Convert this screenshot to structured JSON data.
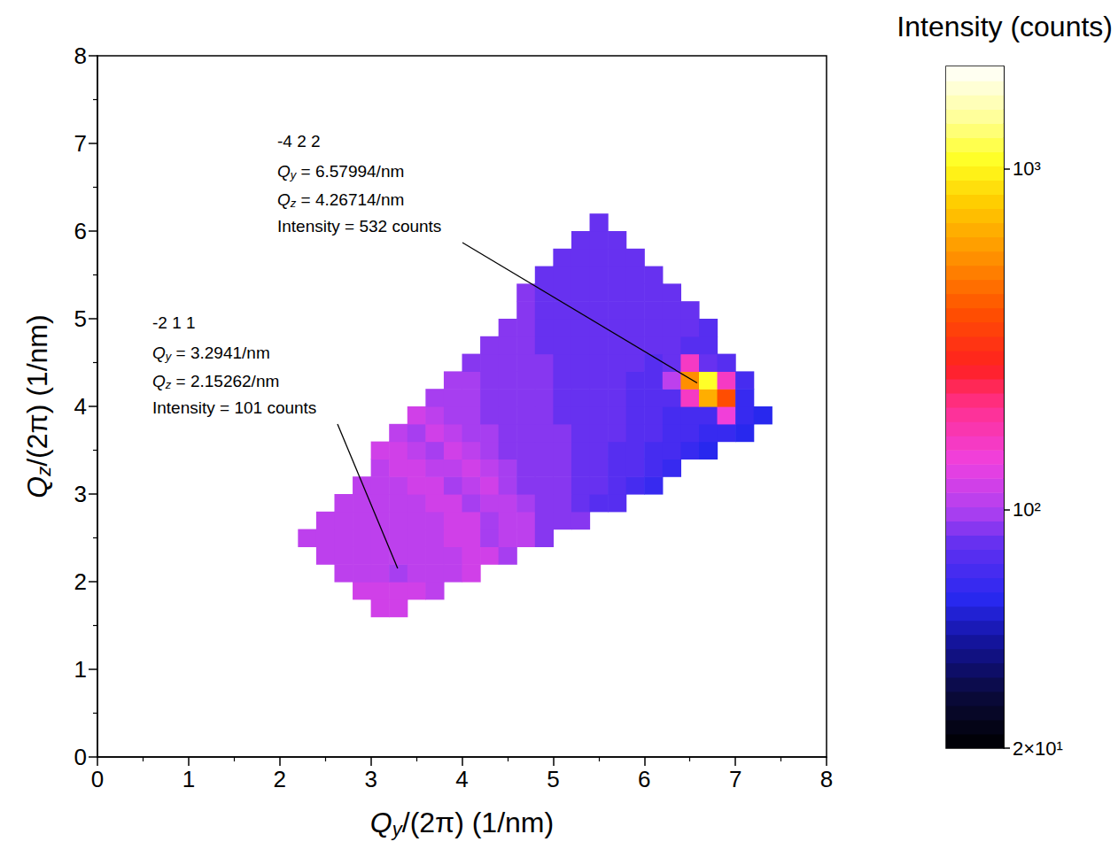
{
  "chart_data": {
    "type": "heatmap",
    "x_label": "Qy/(2π) (1/nm)",
    "y_label": "Qz/(2π) (1/nm)",
    "xlim": [
      0,
      8
    ],
    "ylim": [
      0,
      8
    ],
    "xticks": [
      0,
      1,
      2,
      3,
      4,
      5,
      6,
      7,
      8
    ],
    "yticks": [
      0,
      1,
      2,
      3,
      4,
      5,
      6,
      7,
      8
    ],
    "grid": false,
    "x": [
      2.3,
      2.5,
      2.7,
      2.9,
      3.1,
      3.3,
      3.5,
      3.7,
      3.9,
      4.1,
      4.3,
      4.5,
      4.7,
      4.9,
      5.1,
      5.3,
      5.5,
      5.7,
      5.9,
      6.1,
      6.3,
      6.5,
      6.7,
      6.9,
      7.1,
      7.3
    ],
    "y": [
      1.7,
      1.9,
      2.1,
      2.3,
      2.5,
      2.7,
      2.9,
      3.1,
      3.3,
      3.5,
      3.7,
      3.9,
      4.1,
      4.3,
      4.5,
      4.7,
      4.9,
      5.1,
      5.3,
      5.5,
      5.7,
      5.9,
      6.1
    ],
    "values": [
      [
        null,
        null,
        null,
        null,
        116,
        114,
        null,
        null,
        null,
        null,
        null,
        null,
        null,
        null,
        null,
        null,
        null,
        null,
        null,
        null,
        null,
        null,
        null,
        null,
        null,
        null
      ],
      [
        null,
        null,
        null,
        118,
        116,
        115,
        114,
        112,
        null,
        null,
        null,
        null,
        null,
        null,
        null,
        null,
        null,
        null,
        null,
        null,
        null,
        null,
        null,
        null,
        null,
        null
      ],
      [
        null,
        null,
        110,
        108,
        105,
        101,
        104,
        103,
        105,
        116,
        null,
        null,
        null,
        null,
        null,
        null,
        null,
        null,
        null,
        null,
        null,
        null,
        null,
        null,
        null,
        null
      ],
      [
        null,
        110,
        108,
        106,
        104,
        103,
        105,
        104,
        106,
        116,
        117,
        99,
        null,
        null,
        null,
        null,
        null,
        null,
        null,
        null,
        null,
        null,
        null,
        null,
        null,
        null
      ],
      [
        111,
        109,
        107,
        105,
        104,
        103,
        104,
        105,
        117,
        119,
        102,
        108,
        110,
        92,
        null,
        null,
        null,
        null,
        null,
        null,
        null,
        null,
        null,
        null,
        null,
        null
      ],
      [
        null,
        108,
        106,
        105,
        104,
        103,
        104,
        106,
        117,
        119,
        101,
        112,
        110,
        91,
        88,
        85,
        null,
        null,
        null,
        null,
        null,
        null,
        null,
        null,
        null,
        null
      ],
      [
        null,
        null,
        105,
        104,
        103,
        104,
        106,
        118,
        119,
        100,
        111,
        112,
        93,
        90,
        87,
        80,
        76,
        72,
        null,
        null,
        null,
        null,
        null,
        null,
        null,
        null
      ],
      [
        null,
        null,
        null,
        104,
        103,
        105,
        117,
        119,
        101,
        108,
        113,
        95,
        91,
        89,
        86,
        82,
        78,
        73,
        68,
        63,
        null,
        null,
        null,
        null,
        null,
        null
      ],
      [
        null,
        null,
        null,
        null,
        105,
        116,
        120,
        103,
        104,
        114,
        111,
        94,
        91,
        89,
        86,
        83,
        79,
        74,
        70,
        65,
        60,
        null,
        null,
        null,
        null,
        null
      ],
      [
        null,
        null,
        null,
        null,
        117,
        120,
        106,
        101,
        113,
        112,
        95,
        92,
        90,
        87,
        85,
        82,
        79,
        76,
        72,
        68,
        64,
        60,
        57,
        null,
        null,
        null
      ],
      [
        null,
        null,
        null,
        null,
        null,
        104,
        102,
        113,
        112,
        96,
        93,
        91,
        89,
        87,
        85,
        83,
        80,
        78,
        75,
        72,
        69,
        66,
        62,
        58,
        55,
        null
      ],
      [
        null,
        null,
        null,
        null,
        null,
        null,
        113,
        111,
        97,
        94,
        92,
        90,
        88,
        86,
        84,
        82,
        80,
        77,
        74,
        71,
        68,
        66,
        68,
        140,
        58,
        54
      ],
      [
        null,
        null,
        null,
        null,
        null,
        null,
        null,
        98,
        95,
        93,
        91,
        89,
        87,
        85,
        83,
        81,
        79,
        77,
        75,
        72,
        70,
        160,
        650,
        380,
        62,
        null
      ],
      [
        null,
        null,
        null,
        null,
        null,
        null,
        null,
        null,
        96,
        94,
        92,
        90,
        88,
        86,
        84,
        82,
        80,
        78,
        76,
        74,
        110,
        532,
        1100,
        150,
        66,
        null
      ],
      [
        null,
        null,
        null,
        null,
        null,
        null,
        null,
        null,
        null,
        89,
        88,
        87,
        86,
        85,
        84,
        82,
        80,
        79,
        77,
        76,
        82,
        150,
        80,
        74,
        null,
        null
      ],
      [
        null,
        null,
        null,
        null,
        null,
        null,
        null,
        null,
        null,
        null,
        87,
        86,
        85,
        84,
        83,
        82,
        81,
        80,
        79,
        78,
        77,
        76,
        75,
        null,
        null,
        null
      ],
      [
        null,
        null,
        null,
        null,
        null,
        null,
        null,
        null,
        null,
        null,
        null,
        86,
        85,
        84,
        83,
        82,
        81,
        80,
        79,
        79,
        78,
        77,
        76,
        null,
        null,
        null
      ],
      [
        null,
        null,
        null,
        null,
        null,
        null,
        null,
        null,
        null,
        null,
        null,
        null,
        85,
        84,
        83,
        82,
        81,
        80,
        80,
        79,
        78,
        77,
        null,
        null,
        null,
        null
      ],
      [
        null,
        null,
        null,
        null,
        null,
        null,
        null,
        null,
        null,
        null,
        null,
        null,
        85,
        84,
        83,
        82,
        81,
        80,
        80,
        79,
        78,
        null,
        null,
        null,
        null,
        null
      ],
      [
        null,
        null,
        null,
        null,
        null,
        null,
        null,
        null,
        null,
        null,
        null,
        null,
        null,
        84,
        83,
        82,
        81,
        80,
        80,
        79,
        null,
        null,
        null,
        null,
        null,
        null
      ],
      [
        null,
        null,
        null,
        null,
        null,
        null,
        null,
        null,
        null,
        null,
        null,
        null,
        null,
        null,
        83,
        82,
        81,
        80,
        80,
        null,
        null,
        null,
        null,
        null,
        null,
        null
      ],
      [
        null,
        null,
        null,
        null,
        null,
        null,
        null,
        null,
        null,
        null,
        null,
        null,
        null,
        null,
        null,
        82,
        81,
        80,
        null,
        null,
        null,
        null,
        null,
        null,
        null,
        null
      ],
      [
        null,
        null,
        null,
        null,
        null,
        null,
        null,
        null,
        null,
        null,
        null,
        null,
        null,
        null,
        null,
        null,
        81,
        null,
        null,
        null,
        null,
        null,
        null,
        null,
        null,
        null
      ]
    ],
    "colorbar": {
      "title": "Intensity (counts)",
      "log": true,
      "range": [
        20,
        2000
      ],
      "ticks": [
        {
          "value": 20,
          "label": "2×10¹"
        },
        {
          "value": 100,
          "label": "10²"
        },
        {
          "value": 1000,
          "label": "10³"
        }
      ]
    },
    "annotations": [
      {
        "lines": [
          "-4 2 2",
          "Qy = 6.57994/nm",
          "Qz = 4.26714/nm",
          "Intensity = 532 counts"
        ],
        "x": 6.57994,
        "y": 4.26714
      },
      {
        "lines": [
          "-2 1 1",
          "Qy = 3.2941/nm",
          "Qz = 2.15262/nm",
          "Intensity = 101 counts"
        ],
        "x": 3.2941,
        "y": 2.15262
      }
    ]
  }
}
